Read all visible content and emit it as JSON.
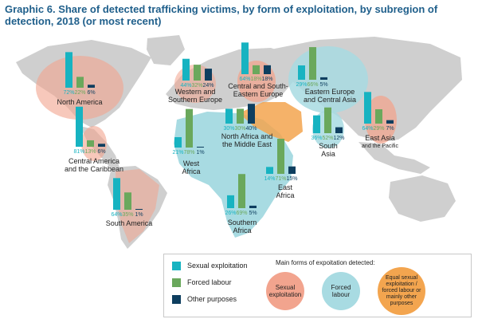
{
  "title": "Graphic 6. Share of detected trafficking victims, by form of exploitation, by subregion of detection, 2018 (or most recent)",
  "colors": {
    "sexual": "#17b3c1",
    "forced": "#6aa85c",
    "other": "#0e3e5f",
    "map": "#cfcfcf",
    "ocean": "#ffffff",
    "region_sexual": "#f2a48e",
    "region_forced": "#a8dbe2",
    "region_equal": "#f3a54f"
  },
  "chart_data": {
    "type": "bar",
    "series": [
      {
        "name": "Sexual exploitation",
        "key": "sexual"
      },
      {
        "name": "Forced labour",
        "key": "forced"
      },
      {
        "name": "Other purposes",
        "key": "other"
      }
    ],
    "regions": [
      {
        "name": "North America",
        "values": [
          72,
          22,
          6
        ],
        "labels": [
          "72%",
          "22%",
          "6%"
        ]
      },
      {
        "name": "Western and Southern Europe",
        "values": [
          44,
          32,
          24
        ],
        "labels": [
          "44%",
          "32%",
          "24%"
        ]
      },
      {
        "name": "Central and South-Eastern Europe",
        "values": [
          64,
          18,
          18
        ],
        "labels": [
          "64%",
          "18%",
          "18%"
        ]
      },
      {
        "name": "Eastern Europe and Central Asia",
        "values": [
          29,
          66,
          5
        ],
        "labels": [
          "29%",
          "66%",
          "5%"
        ]
      },
      {
        "name": "North Africa and the Middle East",
        "values": [
          30,
          30,
          40
        ],
        "labels": [
          "30%",
          "30%",
          "40%"
        ]
      },
      {
        "name": "South Asia",
        "values": [
          36,
          52,
          12
        ],
        "labels": [
          "36%",
          "52%",
          "12%"
        ]
      },
      {
        "name": "East Asia and the Pacific",
        "values": [
          64,
          29,
          7
        ],
        "labels": [
          "64%",
          "29%",
          "7%"
        ]
      },
      {
        "name": "Central America and the Caribbean",
        "values": [
          81,
          13,
          6
        ],
        "labels": [
          "81%",
          "13%",
          "6%"
        ]
      },
      {
        "name": "West Africa",
        "values": [
          21,
          78,
          1
        ],
        "labels": [
          "21%",
          "78%",
          "1%"
        ]
      },
      {
        "name": "East Africa",
        "values": [
          14,
          71,
          15
        ],
        "labels": [
          "14%",
          "71%",
          "15%"
        ]
      },
      {
        "name": "South America",
        "values": [
          64,
          35,
          1
        ],
        "labels": [
          "64%",
          "35%",
          "1%"
        ]
      },
      {
        "name": "Southern Africa",
        "values": [
          26,
          69,
          5
        ],
        "labels": [
          "26%",
          "69%",
          "5%"
        ]
      }
    ]
  },
  "region_labels": {
    "north_america": "North America",
    "western_europe_1": "Western and",
    "western_europe_2": "Southern Europe",
    "central_europe_1": "Central and South-",
    "central_europe_2": "Eastern Europe",
    "eastern_europe_1": "Eastern Europe",
    "eastern_europe_2": "and Central Asia",
    "north_africa_1": "North Africa and",
    "north_africa_2": "the Middle East",
    "south_asia_1": "South",
    "south_asia_2": "Asia",
    "east_asia_1": "East Asia",
    "east_asia_2": "and the Pacific",
    "central_america_1": "Central America",
    "central_america_2": "and the Caribbean",
    "west_africa_1": "West",
    "west_africa_2": "Africa",
    "east_africa_1": "East",
    "east_africa_2": "Africa",
    "south_america": "South America",
    "southern_africa_1": "Southern",
    "southern_africa_2": "Africa"
  },
  "legend": {
    "sexual": "Sexual exploitation",
    "forced": "Forced labour",
    "other": "Other purposes",
    "main_forms": "Main forms of expoitation detected:",
    "circle_sexual": "Sexual exploitation",
    "circle_forced": "Forced labour",
    "circle_equal": "Equal sexual exploitation / forced labour or mainly other purposes"
  }
}
